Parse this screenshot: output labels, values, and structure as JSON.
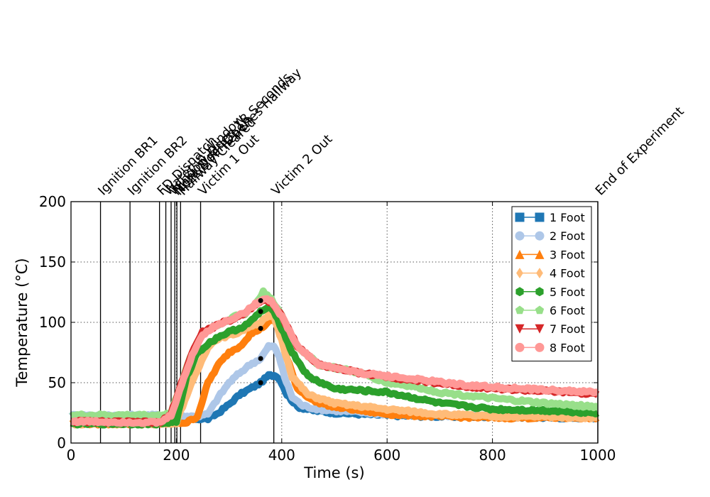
{
  "chart_data": {
    "type": "line",
    "xlabel": "Time (s)",
    "ylabel": "Temperature (°C)",
    "xlim": [
      0,
      1000
    ],
    "ylim": [
      0,
      200
    ],
    "xticks": [
      0,
      200,
      400,
      600,
      800,
      1000
    ],
    "yticks": [
      0,
      50,
      100,
      150,
      200
    ],
    "grid": "dotted",
    "legend_position": "top-right",
    "events": [
      {
        "time": 56,
        "label": "Ignition BR1"
      },
      {
        "time": 112,
        "label": "Ignition BR2"
      },
      {
        "time": 168,
        "label": "FD Dispatch"
      },
      {
        "time": 180,
        "label": "Water in Window"
      },
      {
        "time": 190,
        "label": "Window Open 18 Seconds"
      },
      {
        "time": 197,
        "label": "Front Door Open"
      },
      {
        "time": 201,
        "label": "Nozzle FF Reaches Hallway"
      },
      {
        "time": 208,
        "label": "Hallway Cleared"
      },
      {
        "time": 246,
        "label": "Victim 1 Out"
      },
      {
        "time": 385,
        "label": "Victim 2 Out"
      },
      {
        "time": 1000,
        "label": "End of Experiment"
      }
    ],
    "markers": [
      {
        "x": 360,
        "y": 50
      },
      {
        "x": 360,
        "y": 70
      },
      {
        "x": 360,
        "y": 95
      },
      {
        "x": 360,
        "y": 109
      },
      {
        "x": 360,
        "y": 118
      }
    ],
    "series": [
      {
        "name": "1 Foot",
        "color": "#1f77b4",
        "marker": "square",
        "x": [
          0,
          170,
          240,
          260,
          280,
          300,
          320,
          340,
          360,
          375,
          390,
          400,
          410,
          430,
          460,
          500,
          550,
          600,
          700,
          800,
          900,
          1000
        ],
        "y": [
          20,
          20,
          20,
          20,
          25,
          32,
          40,
          45,
          50,
          56,
          56,
          50,
          40,
          30,
          27,
          25,
          24,
          23,
          22,
          22,
          21,
          21
        ]
      },
      {
        "name": "2 Foot",
        "color": "#aec7e8",
        "marker": "circle",
        "x": [
          0,
          170,
          240,
          260,
          280,
          300,
          320,
          340,
          360,
          375,
          385,
          395,
          405,
          420,
          440,
          470,
          500,
          600,
          700,
          800,
          900,
          1000
        ],
        "y": [
          23,
          23,
          22,
          24,
          38,
          50,
          58,
          65,
          70,
          80,
          80,
          72,
          55,
          38,
          31,
          28,
          27,
          24,
          23,
          22,
          22,
          21
        ]
      },
      {
        "name": "3 Foot",
        "color": "#ff7f0e",
        "marker": "triangle",
        "x": [
          0,
          170,
          220,
          240,
          260,
          280,
          300,
          320,
          340,
          360,
          375,
          385,
          395,
          410,
          430,
          460,
          500,
          600,
          700,
          800,
          900,
          1000
        ],
        "y": [
          16,
          16,
          17,
          22,
          50,
          65,
          75,
          80,
          90,
          95,
          100,
          103,
          95,
          70,
          45,
          35,
          30,
          24,
          22,
          21,
          21,
          21
        ]
      },
      {
        "name": "4 Foot",
        "color": "#ffbb78",
        "marker": "diamond",
        "x": [
          0,
          170,
          200,
          220,
          240,
          260,
          280,
          300,
          320,
          340,
          360,
          375,
          385,
          400,
          420,
          450,
          500,
          600,
          700,
          800,
          900,
          1000
        ],
        "y": [
          16,
          16,
          17,
          40,
          60,
          80,
          87,
          89,
          92,
          97,
          100,
          105,
          105,
          85,
          55,
          40,
          33,
          28,
          24,
          22,
          22,
          21
        ]
      },
      {
        "name": "5 Foot",
        "color": "#2ca02c",
        "marker": "hexagon",
        "x": [
          0,
          170,
          200,
          220,
          240,
          260,
          280,
          300,
          320,
          340,
          360,
          375,
          385,
          400,
          420,
          450,
          500,
          600,
          700,
          800,
          900,
          1000
        ],
        "y": [
          16,
          16,
          18,
          55,
          75,
          82,
          88,
          92,
          95,
          100,
          109,
          112,
          110,
          95,
          75,
          55,
          45,
          42,
          33,
          28,
          27,
          25
        ]
      },
      {
        "name": "6 Foot",
        "color": "#98df8a",
        "marker": "pentagon",
        "x": [
          0,
          170,
          190,
          210,
          230,
          250,
          270,
          290,
          310,
          330,
          350,
          365,
          380,
          400,
          430,
          470,
          550,
          600,
          650,
          700,
          800,
          900,
          1000
        ],
        "y": [
          23,
          23,
          25,
          50,
          75,
          92,
          96,
          100,
          105,
          107,
          115,
          125,
          120,
          105,
          80,
          65,
          58,
          50,
          47,
          42,
          37,
          33,
          30
        ]
      },
      {
        "name": "7 Foot",
        "color": "#d62728",
        "marker": "triangle-down",
        "x": [
          0,
          170,
          190,
          210,
          230,
          250,
          270,
          290,
          310,
          330,
          350,
          365,
          380,
          400,
          430,
          470,
          550,
          650,
          750,
          850,
          950,
          1000
        ],
        "y": [
          18,
          17,
          24,
          50,
          75,
          92,
          96,
          100,
          103,
          108,
          115,
          118,
          117,
          105,
          80,
          65,
          58,
          52,
          47,
          44,
          42,
          40
        ]
      },
      {
        "name": "8 Foot",
        "color": "#ff9896",
        "marker": "circle",
        "x": [
          0,
          170,
          190,
          210,
          230,
          250,
          270,
          290,
          310,
          330,
          350,
          365,
          380,
          400,
          430,
          470,
          550,
          650,
          750,
          850,
          950,
          1000
        ],
        "y": [
          18,
          17,
          23,
          48,
          73,
          90,
          96,
          100,
          104,
          108,
          115,
          120,
          118,
          105,
          80,
          65,
          58,
          53,
          48,
          45,
          43,
          42
        ]
      }
    ]
  }
}
